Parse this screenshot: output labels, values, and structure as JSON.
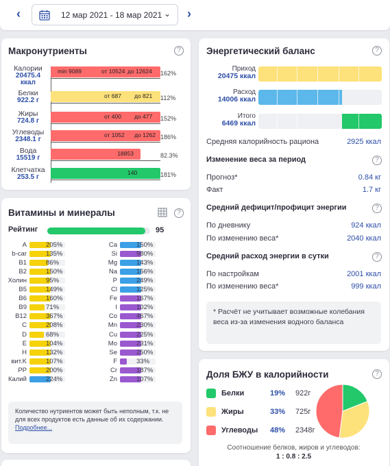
{
  "nav": {
    "prev_label": "‹",
    "next_label": "›",
    "date_range": "12 мар 2021 - 18 мар 2021",
    "chevron": "⌄"
  },
  "macro": {
    "title": "Макронутриенты",
    "help_label": "?",
    "rows": [
      {
        "name": "Калории",
        "value": "20475.4 ккал",
        "pct": "162%",
        "color": "#ff6b6b",
        "fill": 1.0,
        "markers": [
          "min 9089",
          "от 10524",
          "до 12624"
        ]
      },
      {
        "name": "Белки",
        "value": "922.2 г",
        "pct": "112%",
        "color": "#fde17a",
        "fill": 1.0,
        "markers": [
          "от 687",
          "до 821"
        ]
      },
      {
        "name": "Жиры",
        "value": "724.8 г",
        "pct": "152%",
        "color": "#ff6b6b",
        "fill": 1.0,
        "markers": [
          "от 400",
          "до 477"
        ]
      },
      {
        "name": "Углеводы",
        "value": "2348.1 г",
        "pct": "186%",
        "color": "#ff6b6b",
        "fill": 1.0,
        "markers": [
          "от 1052",
          "до 1262"
        ]
      },
      {
        "name": "Вода",
        "value": "15519 г",
        "pct": "82.3%",
        "color": "#ff6b6b",
        "fill": 0.82,
        "markers": [
          "18853"
        ]
      },
      {
        "name": "Клетчатка",
        "value": "253.5 г",
        "pct": "181%",
        "color": "#22c86a",
        "fill": 1.0,
        "markers": [
          "140"
        ]
      }
    ]
  },
  "vitamins": {
    "title": "Витамины и минералы",
    "table_icon": "grid-icon",
    "help_label": "?",
    "rating_label": "Рейтинг",
    "rating_value": "95",
    "rating_fill": 0.95,
    "left": [
      {
        "n": "A",
        "p": "205%",
        "c": "#f5d20a",
        "f": 1.0
      },
      {
        "n": "b-car",
        "p": "135%",
        "c": "#f5d20a",
        "f": 1.0
      },
      {
        "n": "B1",
        "p": "86%",
        "c": "#f5d20a",
        "f": 0.86
      },
      {
        "n": "B2",
        "p": "150%",
        "c": "#f5d20a",
        "f": 1.0
      },
      {
        "n": "Холин",
        "p": "95%",
        "c": "#f5d20a",
        "f": 0.95
      },
      {
        "n": "B5",
        "p": "149%",
        "c": "#f5d20a",
        "f": 1.0
      },
      {
        "n": "B6",
        "p": "160%",
        "c": "#f5d20a",
        "f": 1.0
      },
      {
        "n": "B9",
        "p": "71%",
        "c": "#f5d20a",
        "f": 0.71
      },
      {
        "n": "B12",
        "p": "367%",
        "c": "#f5d20a",
        "f": 1.0
      },
      {
        "n": "C",
        "p": "208%",
        "c": "#f5d20a",
        "f": 1.0
      },
      {
        "n": "D",
        "p": "68%",
        "c": "#f5d20a",
        "f": 0.68
      },
      {
        "n": "E",
        "p": "104%",
        "c": "#f5d20a",
        "f": 1.0
      },
      {
        "n": "H",
        "p": "132%",
        "c": "#f5d20a",
        "f": 1.0
      },
      {
        "n": "вит.K",
        "p": "107%",
        "c": "#f5d20a",
        "f": 1.0
      },
      {
        "n": "PP",
        "p": "200%",
        "c": "#f5d20a",
        "f": 1.0
      },
      {
        "n": "Калий",
        "p": "224%",
        "c": "#3ba0e6",
        "f": 1.0
      }
    ],
    "right": [
      {
        "n": "Ca",
        "p": "150%",
        "c": "#3ba0e6",
        "f": 1.0
      },
      {
        "n": "Si",
        "p": "980%",
        "c": "#9b59d0",
        "f": 1.0
      },
      {
        "n": "Mg",
        "p": "143%",
        "c": "#3ba0e6",
        "f": 1.0
      },
      {
        "n": "Na",
        "p": "156%",
        "c": "#3ba0e6",
        "f": 1.0
      },
      {
        "n": "P",
        "p": "249%",
        "c": "#3ba0e6",
        "f": 1.0
      },
      {
        "n": "Cl",
        "p": "125%",
        "c": "#3ba0e6",
        "f": 1.0
      },
      {
        "n": "Fe",
        "p": "167%",
        "c": "#9b59d0",
        "f": 1.0
      },
      {
        "n": "I",
        "p": "102%",
        "c": "#9b59d0",
        "f": 1.0
      },
      {
        "n": "Co",
        "p": "467%",
        "c": "#9b59d0",
        "f": 1.0
      },
      {
        "n": "Mn",
        "p": "230%",
        "c": "#9b59d0",
        "f": 1.0
      },
      {
        "n": "Cu",
        "p": "225%",
        "c": "#9b59d0",
        "f": 1.0
      },
      {
        "n": "Mo",
        "p": "231%",
        "c": "#9b59d0",
        "f": 1.0
      },
      {
        "n": "Se",
        "p": "250%",
        "c": "#9b59d0",
        "f": 1.0
      },
      {
        "n": "F",
        "p": "33%",
        "c": "#9b59d0",
        "f": 0.33
      },
      {
        "n": "Cr",
        "p": "187%",
        "c": "#9b59d0",
        "f": 1.0
      },
      {
        "n": "Zn",
        "p": "107%",
        "c": "#9b59d0",
        "f": 1.0
      }
    ],
    "note": "Количество нутриентов может быть неполным, т.к. не для всех продуктов есть данные об их содержании.",
    "note_link": "Подробнее..."
  },
  "energy": {
    "title": "Энергетический баланс",
    "help_label": "?",
    "bars": [
      {
        "label": "Приход",
        "value": "20475 ккал",
        "color": "#fde17a",
        "fill": 1.0
      },
      {
        "label": "Расход",
        "value": "14006 ккал",
        "color": "#5cb8ea",
        "fill": 0.68
      },
      {
        "label": "Итого",
        "value": "6469 ккал",
        "color": "#22c86a",
        "fill": 0.32
      }
    ],
    "avg_label": "Средняя калорийность рациона",
    "avg_value": "2925 ккал",
    "weight_title": "Изменение веса за период",
    "forecast_label": "Прогноз*",
    "forecast_value": "0.84 кг",
    "fact_label": "Факт",
    "fact_value": "1.7 кг",
    "deficit_title": "Средний дефицит/профицит энергии",
    "by_diary_label": "По дневнику",
    "by_diary_value": "924 ккал",
    "by_weight_label": "По изменению веса*",
    "by_weight_value": "2040 ккал",
    "spend_title": "Средний расход энергии в сутки",
    "by_settings_label": "По настройкам",
    "by_settings_value": "2001 ккал",
    "by_weight2_label": "По изменению веса*",
    "by_weight2_value": "999 ккал",
    "note": "* Расчёт не учитывает возможные колебания веса из-за изменения водного баланса"
  },
  "bzu": {
    "title": "Доля БЖУ в калорийности",
    "help_label": "?",
    "items": [
      {
        "name": "Белки",
        "pct": "19%",
        "grams": "922г",
        "color": "#22c86a",
        "share": 19
      },
      {
        "name": "Жиры",
        "pct": "33%",
        "grams": "725г",
        "color": "#fde17a",
        "share": 33
      },
      {
        "name": "Углеводы",
        "pct": "48%",
        "grams": "2348г",
        "color": "#ff6b6b",
        "share": 48
      }
    ],
    "ratio_label": "Соотношение белков, жиров и углеводов:",
    "ratio_value": "1 : 0.8 : 2.5"
  }
}
